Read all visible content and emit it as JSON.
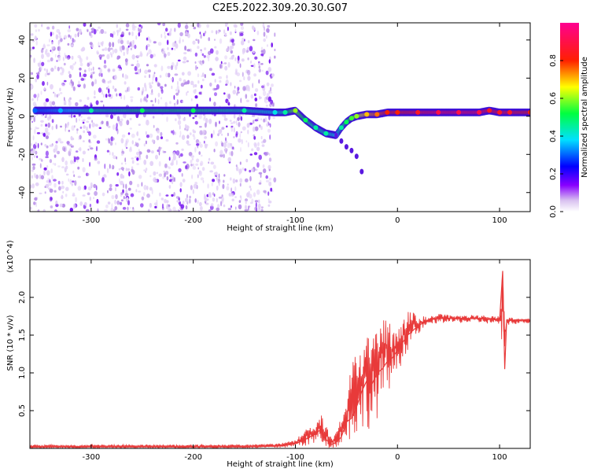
{
  "title": "C2E5.2022.309.20.30.G07",
  "colors": {
    "snr_line": "#e83a3a",
    "axis": "#000000",
    "background": "#ffffff"
  },
  "chart_data": [
    {
      "type": "heatmap",
      "title": "C2E5.2022.309.20.30.G07",
      "xlabel": "Height of straight line (km)",
      "ylabel": "Frequency (Hz)",
      "xlim": [
        -360,
        130
      ],
      "ylim": [
        -50,
        49
      ],
      "xticks": [
        -300,
        -200,
        -100,
        0,
        100
      ],
      "yticks": [
        -40,
        -20,
        0,
        20,
        40
      ],
      "grid": false,
      "colorbar": {
        "label": "Normalized spectral amplitude",
        "range": [
          0.0,
          1.0
        ],
        "ticks": [
          0.0,
          0.2,
          0.4,
          0.6,
          0.8
        ],
        "colormap": "rainbow (white-purple-blue-cyan-green-yellow-red-magenta)"
      },
      "noise_region_x": [
        -360,
        -120
      ],
      "signal_track": {
        "x": [
          -355,
          -330,
          -300,
          -250,
          -200,
          -150,
          -120,
          -110,
          -100,
          -90,
          -80,
          -70,
          -60,
          -55,
          -50,
          -45,
          -40,
          -30,
          -20,
          -10,
          0,
          20,
          40,
          60,
          80,
          90,
          100,
          110,
          130
        ],
        "freq": [
          3,
          3,
          3,
          3,
          3,
          3,
          2,
          2,
          3,
          -2,
          -6,
          -9,
          -10,
          -6,
          -3,
          -1,
          0,
          1,
          1,
          2,
          2,
          2,
          2,
          2,
          2,
          3,
          2,
          2,
          2
        ],
        "amplitude": [
          0.3,
          0.35,
          0.45,
          0.5,
          0.5,
          0.45,
          0.4,
          0.45,
          0.6,
          0.5,
          0.45,
          0.45,
          0.4,
          0.45,
          0.5,
          0.55,
          0.6,
          0.7,
          0.75,
          0.8,
          0.8,
          0.85,
          0.9,
          0.9,
          0.9,
          0.85,
          0.85,
          0.85,
          0.8
        ]
      },
      "secondary_branch": {
        "x": [
          -60,
          -55,
          -50,
          -45,
          -40,
          -35
        ],
        "freq": [
          -10,
          -13,
          -16,
          -18,
          -21,
          -29
        ]
      }
    },
    {
      "type": "line",
      "xlabel": "Height of straight line (km)",
      "ylabel": "SNR (10 * v/v)",
      "yunit_multiplier": "(x10^4)",
      "xlim": [
        -360,
        130
      ],
      "ylim": [
        0.0,
        2.5
      ],
      "xticks": [
        -300,
        -200,
        -100,
        0,
        100
      ],
      "yticks": [
        0.5,
        1.0,
        1.5,
        2.0
      ],
      "grid": false,
      "series": [
        {
          "x": [
            -360,
            -300,
            -200,
            -150,
            -120,
            -110,
            -100,
            -90,
            -80,
            -75,
            -70,
            -65,
            -60,
            -55,
            -50,
            -45,
            -40,
            -35,
            -30,
            -25,
            -20,
            -15,
            -10,
            -5,
            0,
            5,
            10,
            20,
            30,
            40,
            60,
            80,
            100,
            103,
            105,
            107,
            110,
            130
          ],
          "y": [
            0.02,
            0.02,
            0.02,
            0.02,
            0.03,
            0.04,
            0.06,
            0.12,
            0.2,
            0.25,
            0.12,
            0.05,
            0.08,
            0.15,
            0.35,
            0.4,
            0.55,
            0.75,
            0.9,
            0.85,
            1.0,
            1.05,
            1.15,
            1.2,
            1.3,
            1.4,
            1.5,
            1.62,
            1.7,
            1.72,
            1.72,
            1.72,
            1.7,
            2.35,
            1.05,
            1.7,
            1.7,
            1.7
          ],
          "upper_envelope": [
            0.05,
            0.05,
            0.05,
            0.05,
            0.06,
            0.08,
            0.12,
            0.25,
            0.35,
            0.45,
            0.3,
            0.15,
            0.2,
            0.45,
            0.7,
            1.1,
            1.35,
            1.4,
            1.7,
            1.55,
            1.7,
            1.8,
            1.8,
            1.55,
            1.65,
            1.7,
            1.85,
            1.75,
            1.75,
            1.78,
            1.76,
            1.77,
            1.75,
            2.35,
            1.75,
            1.74,
            1.74,
            1.72
          ],
          "lower_envelope": [
            0.0,
            0.0,
            0.0,
            0.0,
            0.0,
            0.01,
            0.02,
            0.03,
            0.05,
            0.05,
            0.02,
            0.0,
            0.02,
            0.05,
            0.1,
            0.1,
            0.15,
            0.2,
            0.3,
            0.2,
            0.4,
            0.5,
            0.7,
            0.9,
            1.0,
            1.15,
            1.3,
            1.5,
            1.62,
            1.66,
            1.66,
            1.66,
            1.64,
            1.1,
            1.05,
            1.62,
            1.64,
            1.66
          ]
        }
      ]
    }
  ]
}
